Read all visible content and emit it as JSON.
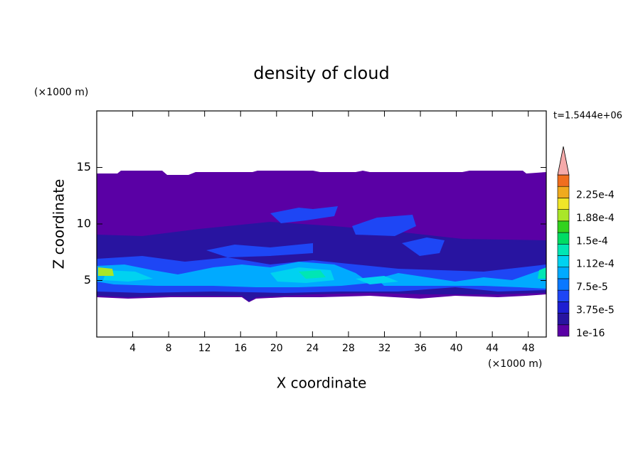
{
  "chart_data": {
    "type": "contour",
    "title": "density of cloud",
    "xlabel": "X coordinate",
    "ylabel": "Z coordinate",
    "x_unit": "(×1000 m)",
    "y_unit": "(×1000 m)",
    "time_label": "t=1.5444e+06",
    "xlim": [
      0,
      50
    ],
    "xticks": [
      4,
      8,
      12,
      16,
      20,
      24,
      28,
      32,
      36,
      40,
      44,
      48
    ],
    "ylim": [
      0,
      20
    ],
    "yticks": [
      5,
      10,
      15
    ],
    "levels": [
      1e-16,
      1.875e-05,
      3.75e-05,
      5.625e-05,
      7.5e-05,
      9.375e-05,
      0.0001125,
      0.00013125,
      0.00015,
      0.00016875,
      0.0001875,
      0.00020625,
      0.000225,
      0.00024375,
      0.0002625
    ],
    "value_labels": [
      "1e-16",
      null,
      "3.75e-5",
      null,
      "7.5e-5",
      null,
      "1.12e-4",
      null,
      "1.5e-4",
      null,
      "1.88e-4",
      null,
      "2.25e-4",
      null,
      null
    ],
    "colors": [
      "#5a00a5",
      "#2814a0",
      "#1e1ed2",
      "#1e46f5",
      "#0a78ff",
      "#00aaff",
      "#00d2f0",
      "#00e6b4",
      "#00dc64",
      "#32d21e",
      "#aae628",
      "#f0e628",
      "#f0aa1e",
      "#f06e1e"
    ],
    "extend_color": "#f5aaaa"
  }
}
